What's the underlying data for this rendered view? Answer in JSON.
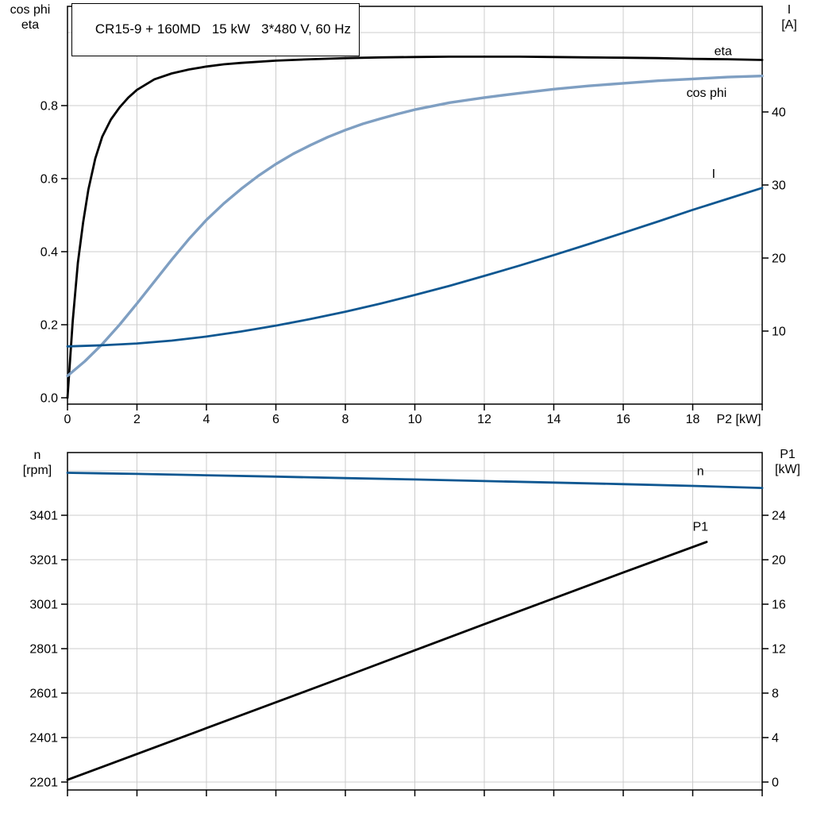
{
  "header": {
    "title_box": "CR15-9 + 160MD   15 kW   3*480 V, 60 Hz"
  },
  "corners": {
    "top_left": [
      "cos phi",
      "eta"
    ],
    "top_right": [
      "I",
      "[A]"
    ],
    "bottom_left": [
      "n",
      "[rpm]"
    ],
    "bottom_right": [
      "P1",
      "[kW]"
    ]
  },
  "colors": {
    "black": "#000000",
    "light_blue": "#7f9fc2",
    "dark_blue": "#0e5791",
    "grid": "#cccccc",
    "frame": "#000000",
    "background": "#ffffff"
  },
  "chart_data": [
    {
      "type": "line",
      "title": "CR15-9 + 160MD   15 kW   3*480 V, 60 Hz",
      "x_axis": {
        "label": "P2 [kW]",
        "min": 0,
        "max": 20,
        "ticks": [
          0,
          2,
          4,
          6,
          8,
          10,
          12,
          14,
          16,
          18,
          20
        ],
        "tick_labels": [
          "0",
          "2",
          "4",
          "6",
          "8",
          "10",
          "12",
          "14",
          "16",
          "18"
        ],
        "grid_ticks": [
          2,
          4,
          6,
          8,
          10,
          12,
          14,
          16,
          18
        ]
      },
      "y_left": {
        "label": "cos phi / eta",
        "ticks": [
          0,
          0.2,
          0.4,
          0.6,
          0.8
        ],
        "tick_labels": [
          "0.0",
          "0.2",
          "0.4",
          "0.6",
          "0.8"
        ],
        "grid_ticks": [
          0.2,
          0.4,
          0.6,
          0.8,
          1.0
        ]
      },
      "y_right": {
        "label": "I [A]",
        "ticks": [
          10,
          20,
          30,
          40
        ],
        "tick_labels": [
          "10",
          "20",
          "30",
          "40"
        ]
      },
      "series": [
        {
          "name": "eta",
          "axis": "left",
          "color": "#000000",
          "points": [
            [
              0,
              0
            ],
            [
              0.15,
              0.21
            ],
            [
              0.3,
              0.37
            ],
            [
              0.45,
              0.48
            ],
            [
              0.6,
              0.57
            ],
            [
              0.8,
              0.655
            ],
            [
              1,
              0.715
            ],
            [
              1.25,
              0.762
            ],
            [
              1.5,
              0.795
            ],
            [
              1.75,
              0.822
            ],
            [
              2,
              0.843
            ],
            [
              2.5,
              0.872
            ],
            [
              3,
              0.888
            ],
            [
              3.5,
              0.899
            ],
            [
              4,
              0.907
            ],
            [
              4.5,
              0.913
            ],
            [
              5,
              0.917
            ],
            [
              6,
              0.923
            ],
            [
              7,
              0.927
            ],
            [
              8,
              0.93
            ],
            [
              9,
              0.932
            ],
            [
              10,
              0.933
            ],
            [
              11,
              0.934
            ],
            [
              12,
              0.934
            ],
            [
              13,
              0.934
            ],
            [
              14,
              0.933
            ],
            [
              15,
              0.932
            ],
            [
              16,
              0.931
            ],
            [
              17,
              0.93
            ],
            [
              18,
              0.928
            ],
            [
              19,
              0.927
            ],
            [
              20,
              0.925
            ]
          ]
        },
        {
          "name": "cos phi",
          "axis": "left",
          "color": "#7f9fc2",
          "points": [
            [
              0,
              0.06
            ],
            [
              0.5,
              0.1
            ],
            [
              1,
              0.147
            ],
            [
              1.5,
              0.2
            ],
            [
              2,
              0.258
            ],
            [
              2.5,
              0.318
            ],
            [
              3,
              0.378
            ],
            [
              3.5,
              0.435
            ],
            [
              4,
              0.487
            ],
            [
              4.5,
              0.532
            ],
            [
              5,
              0.572
            ],
            [
              5.5,
              0.608
            ],
            [
              6,
              0.64
            ],
            [
              6.5,
              0.668
            ],
            [
              7,
              0.692
            ],
            [
              7.5,
              0.714
            ],
            [
              8,
              0.733
            ],
            [
              8.5,
              0.75
            ],
            [
              9,
              0.764
            ],
            [
              9.5,
              0.777
            ],
            [
              10,
              0.789
            ],
            [
              11,
              0.808
            ],
            [
              12,
              0.822
            ],
            [
              13,
              0.834
            ],
            [
              14,
              0.845
            ],
            [
              15,
              0.854
            ],
            [
              16,
              0.861
            ],
            [
              17,
              0.868
            ],
            [
              18,
              0.873
            ],
            [
              19,
              0.878
            ],
            [
              20,
              0.881
            ]
          ]
        },
        {
          "name": "I",
          "axis": "right",
          "color": "#0e5791",
          "points": [
            [
              0,
              7.9
            ],
            [
              1,
              8.05
            ],
            [
              2,
              8.3
            ],
            [
              3,
              8.7
            ],
            [
              4,
              9.25
            ],
            [
              5,
              9.95
            ],
            [
              6,
              10.75
            ],
            [
              7,
              11.65
            ],
            [
              8,
              12.65
            ],
            [
              9,
              13.75
            ],
            [
              10,
              14.95
            ],
            [
              11,
              16.2
            ],
            [
              12,
              17.55
            ],
            [
              13,
              18.95
            ],
            [
              14,
              20.4
            ],
            [
              15,
              21.9
            ],
            [
              16,
              23.45
            ],
            [
              17,
              25.0
            ],
            [
              18,
              26.6
            ],
            [
              19,
              28.1
            ],
            [
              20,
              29.6
            ]
          ]
        }
      ],
      "annotations": [
        {
          "text": "eta",
          "x": 18.62,
          "y": 0.95,
          "axis": "left",
          "color": "#000000"
        },
        {
          "text": "cos phi",
          "x": 17.82,
          "y": 0.836,
          "axis": "left",
          "color": "#7f9fc2"
        },
        {
          "text": "I",
          "x": 18.55,
          "y": 31.6,
          "axis": "right",
          "color": "#0e5791"
        }
      ]
    },
    {
      "type": "line",
      "title": "",
      "x_axis": {
        "label": "",
        "min": 0,
        "max": 20,
        "ticks": [
          0,
          2,
          4,
          6,
          8,
          10,
          12,
          14,
          16,
          18,
          20
        ],
        "tick_labels": [],
        "grid_ticks": [
          2,
          4,
          6,
          8,
          10,
          12,
          14,
          16,
          18
        ]
      },
      "y_left": {
        "label": "n [rpm]",
        "ticks": [
          2201,
          2401,
          2601,
          2801,
          3001,
          3201,
          3401
        ],
        "tick_labels": [
          "2201",
          "2401",
          "2601",
          "2801",
          "3001",
          "3201",
          "3401"
        ],
        "grid_ticks": [
          2201,
          2401,
          2601,
          2801,
          3001,
          3201,
          3401,
          3601
        ]
      },
      "y_right": {
        "label": "P1 [kW]",
        "ticks": [
          0,
          4,
          8,
          12,
          16,
          20,
          24
        ],
        "tick_labels": [
          "0",
          "4",
          "8",
          "12",
          "16",
          "20",
          "24"
        ]
      },
      "series": [
        {
          "name": "n",
          "axis": "left",
          "color": "#0e5791",
          "points": [
            [
              0,
              3592
            ],
            [
              2,
              3587
            ],
            [
              4,
              3581
            ],
            [
              6,
              3575
            ],
            [
              8,
              3568
            ],
            [
              10,
              3562
            ],
            [
              12,
              3555
            ],
            [
              14,
              3548
            ],
            [
              16,
              3541
            ],
            [
              18,
              3533
            ],
            [
              20,
              3524
            ]
          ]
        },
        {
          "name": "P1",
          "axis": "right",
          "color": "#000000",
          "points": [
            [
              0,
              0.2
            ],
            [
              4,
              4.85
            ],
            [
              8,
              9.5
            ],
            [
              12,
              14.2
            ],
            [
              16,
              18.85
            ],
            [
              18.4,
              21.6
            ]
          ]
        }
      ],
      "annotations": [
        {
          "text": "n",
          "x": 18.12,
          "y": 3602,
          "axis": "left",
          "color": "#0e5791"
        },
        {
          "text": "P1",
          "x": 18.0,
          "y": 23.0,
          "axis": "right",
          "color": "#000000"
        }
      ]
    }
  ]
}
